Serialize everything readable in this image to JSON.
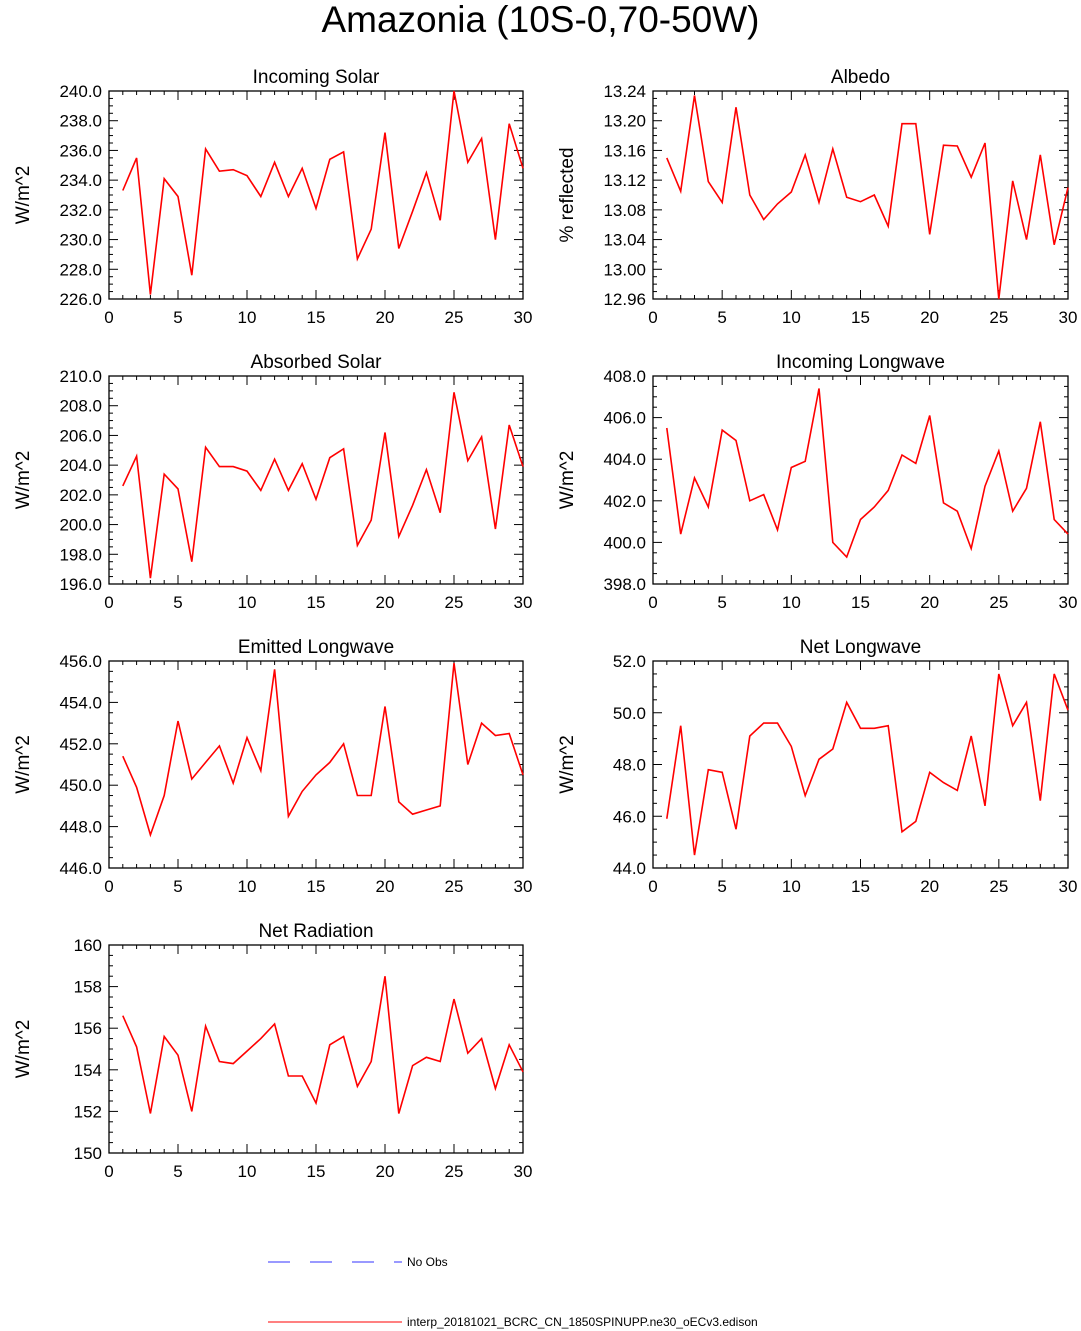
{
  "page": {
    "title": "Amazonia (10S-0,70-50W)"
  },
  "legend": {
    "obs_label": "No Obs",
    "model_label": "interp_20181021_BCRC_CN_1850SPINUPP.ne30_oECv3.edison",
    "obs_color": "#3333ff",
    "model_color": "#ff0000"
  },
  "chart_data": [
    {
      "type": "line",
      "title": "Incoming Solar",
      "xlabel": "",
      "ylabel": "W/m^2",
      "xlim": [
        0,
        30
      ],
      "ylim": [
        226,
        240
      ],
      "xticks": [
        0,
        5,
        10,
        15,
        20,
        25,
        30
      ],
      "yticks": [
        226,
        228,
        230,
        232,
        234,
        236,
        238,
        240
      ],
      "ytick_labels": [
        "226.0",
        "228.0",
        "230.0",
        "232.0",
        "234.0",
        "236.0",
        "238.0",
        "240.0"
      ],
      "series": [
        {
          "color": "#ff0000",
          "x": [
            1,
            2,
            3,
            4,
            5,
            6,
            7,
            8,
            9,
            10,
            11,
            12,
            13,
            14,
            15,
            16,
            17,
            18,
            19,
            20,
            21,
            22,
            23,
            24,
            25,
            26,
            27,
            28,
            29,
            30
          ],
          "values": [
            233.3,
            235.5,
            226.3,
            234.1,
            232.9,
            227.6,
            236.1,
            234.6,
            234.7,
            234.3,
            232.9,
            235.2,
            232.9,
            234.8,
            232.1,
            235.4,
            235.9,
            228.7,
            230.7,
            237.2,
            229.4,
            231.9,
            234.5,
            231.3,
            240.0,
            235.2,
            236.8,
            230.0,
            237.8,
            234.8
          ]
        }
      ]
    },
    {
      "type": "line",
      "title": "Albedo",
      "xlabel": "",
      "ylabel": "% reflected",
      "xlim": [
        0,
        30
      ],
      "ylim": [
        12.96,
        13.24
      ],
      "xticks": [
        0,
        5,
        10,
        15,
        20,
        25,
        30
      ],
      "yticks": [
        12.96,
        13.0,
        13.04,
        13.08,
        13.12,
        13.16,
        13.2,
        13.24
      ],
      "ytick_labels": [
        "12.96",
        "13.00",
        "13.04",
        "13.08",
        "13.12",
        "13.16",
        "13.20",
        "13.24"
      ],
      "series": [
        {
          "color": "#ff0000",
          "x": [
            1,
            2,
            3,
            4,
            5,
            6,
            7,
            8,
            9,
            10,
            11,
            12,
            13,
            14,
            15,
            16,
            17,
            18,
            19,
            20,
            21,
            22,
            23,
            24,
            25,
            26,
            27,
            28,
            29,
            30
          ],
          "values": [
            13.15,
            13.105,
            13.234,
            13.118,
            13.09,
            13.218,
            13.1,
            13.067,
            13.088,
            13.104,
            13.154,
            13.09,
            13.162,
            13.097,
            13.091,
            13.1,
            13.058,
            13.196,
            13.196,
            13.047,
            13.167,
            13.166,
            13.124,
            13.17,
            12.96,
            13.119,
            13.04,
            13.154,
            13.033,
            13.11
          ]
        }
      ]
    },
    {
      "type": "line",
      "title": "Absorbed Solar",
      "xlabel": "",
      "ylabel": "W/m^2",
      "xlim": [
        0,
        30
      ],
      "ylim": [
        196,
        210
      ],
      "xticks": [
        0,
        5,
        10,
        15,
        20,
        25,
        30
      ],
      "yticks": [
        196,
        198,
        200,
        202,
        204,
        206,
        208,
        210
      ],
      "ytick_labels": [
        "196.0",
        "198.0",
        "200.0",
        "202.0",
        "204.0",
        "206.0",
        "208.0",
        "210.0"
      ],
      "series": [
        {
          "color": "#ff0000",
          "x": [
            1,
            2,
            3,
            4,
            5,
            6,
            7,
            8,
            9,
            10,
            11,
            12,
            13,
            14,
            15,
            16,
            17,
            18,
            19,
            20,
            21,
            22,
            23,
            24,
            25,
            26,
            27,
            28,
            29,
            30
          ],
          "values": [
            202.6,
            204.6,
            196.4,
            203.4,
            202.4,
            197.5,
            205.2,
            203.9,
            203.9,
            203.6,
            202.3,
            204.4,
            202.3,
            204.1,
            201.7,
            204.5,
            205.1,
            198.6,
            200.3,
            206.2,
            199.2,
            201.3,
            203.7,
            200.8,
            208.9,
            204.3,
            205.9,
            199.7,
            206.7,
            203.9
          ]
        }
      ]
    },
    {
      "type": "line",
      "title": "Incoming Longwave",
      "xlabel": "",
      "ylabel": "W/m^2",
      "xlim": [
        0,
        30
      ],
      "ylim": [
        398,
        408
      ],
      "xticks": [
        0,
        5,
        10,
        15,
        20,
        25,
        30
      ],
      "yticks": [
        398,
        400,
        402,
        404,
        406,
        408
      ],
      "ytick_labels": [
        "398.0",
        "400.0",
        "402.0",
        "404.0",
        "406.0",
        "408.0"
      ],
      "series": [
        {
          "color": "#ff0000",
          "x": [
            1,
            2,
            3,
            4,
            5,
            6,
            7,
            8,
            9,
            10,
            11,
            12,
            13,
            14,
            15,
            16,
            17,
            18,
            19,
            20,
            21,
            22,
            23,
            24,
            25,
            26,
            27,
            28,
            29,
            30
          ],
          "values": [
            405.5,
            400.4,
            403.1,
            401.7,
            405.4,
            404.9,
            402.0,
            402.3,
            400.6,
            403.6,
            403.9,
            407.4,
            400.0,
            399.3,
            401.1,
            401.7,
            402.5,
            404.2,
            403.8,
            406.1,
            401.9,
            401.5,
            399.7,
            402.7,
            404.4,
            401.5,
            402.6,
            405.8,
            401.1,
            400.4
          ]
        }
      ]
    },
    {
      "type": "line",
      "title": "Emitted Longwave",
      "xlabel": "",
      "ylabel": "W/m^2",
      "xlim": [
        0,
        30
      ],
      "ylim": [
        446,
        456
      ],
      "xticks": [
        0,
        5,
        10,
        15,
        20,
        25,
        30
      ],
      "yticks": [
        446,
        448,
        450,
        452,
        454,
        456
      ],
      "ytick_labels": [
        "446.0",
        "448.0",
        "450.0",
        "452.0",
        "454.0",
        "456.0"
      ],
      "series": [
        {
          "color": "#ff0000",
          "x": [
            1,
            2,
            3,
            4,
            5,
            6,
            7,
            8,
            9,
            10,
            11,
            12,
            13,
            14,
            15,
            16,
            17,
            18,
            19,
            20,
            21,
            22,
            23,
            24,
            25,
            26,
            27,
            28,
            29,
            30
          ],
          "values": [
            451.4,
            449.9,
            447.6,
            449.5,
            453.1,
            450.3,
            451.1,
            451.9,
            450.1,
            452.3,
            450.7,
            455.6,
            448.5,
            449.7,
            450.5,
            451.1,
            452.0,
            449.5,
            449.5,
            453.8,
            449.2,
            448.6,
            448.8,
            449.0,
            455.9,
            451.0,
            453.0,
            452.4,
            452.5,
            450.5
          ]
        }
      ]
    },
    {
      "type": "line",
      "title": "Net Longwave",
      "xlabel": "",
      "ylabel": "W/m^2",
      "xlim": [
        0,
        30
      ],
      "ylim": [
        44,
        52
      ],
      "xticks": [
        0,
        5,
        10,
        15,
        20,
        25,
        30
      ],
      "yticks": [
        44,
        46,
        48,
        50,
        52
      ],
      "ytick_labels": [
        "44.0",
        "46.0",
        "48.0",
        "50.0",
        "52.0"
      ],
      "series": [
        {
          "color": "#ff0000",
          "x": [
            1,
            2,
            3,
            4,
            5,
            6,
            7,
            8,
            9,
            10,
            11,
            12,
            13,
            14,
            15,
            16,
            17,
            18,
            19,
            20,
            21,
            22,
            23,
            24,
            25,
            26,
            27,
            28,
            29,
            30
          ],
          "values": [
            45.9,
            49.5,
            44.5,
            47.8,
            47.7,
            45.5,
            49.1,
            49.6,
            49.6,
            48.7,
            46.8,
            48.2,
            48.6,
            50.4,
            49.4,
            49.4,
            49.5,
            45.4,
            45.8,
            47.7,
            47.3,
            47.0,
            49.1,
            46.4,
            51.5,
            49.5,
            50.4,
            46.6,
            51.5,
            50.1
          ]
        }
      ]
    },
    {
      "type": "line",
      "title": "Net Radiation",
      "xlabel": "",
      "ylabel": "W/m^2",
      "xlim": [
        0,
        30
      ],
      "ylim": [
        150,
        160
      ],
      "xticks": [
        0,
        5,
        10,
        15,
        20,
        25,
        30
      ],
      "yticks": [
        150,
        152,
        154,
        156,
        158,
        160
      ],
      "ytick_labels": [
        "150",
        "152",
        "154",
        "156",
        "158",
        "160"
      ],
      "series": [
        {
          "color": "#ff0000",
          "x": [
            1,
            2,
            3,
            4,
            5,
            6,
            7,
            8,
            9,
            10,
            11,
            12,
            13,
            14,
            15,
            16,
            17,
            18,
            19,
            20,
            21,
            22,
            23,
            24,
            25,
            26,
            27,
            28,
            29,
            30
          ],
          "values": [
            156.6,
            155.1,
            151.9,
            155.6,
            154.7,
            152.0,
            156.1,
            154.4,
            154.3,
            154.9,
            155.5,
            156.2,
            153.7,
            153.7,
            152.4,
            155.2,
            155.6,
            153.2,
            154.4,
            158.5,
            151.9,
            154.2,
            154.6,
            154.4,
            157.4,
            154.8,
            155.5,
            153.1,
            155.2,
            153.9
          ]
        }
      ]
    }
  ]
}
